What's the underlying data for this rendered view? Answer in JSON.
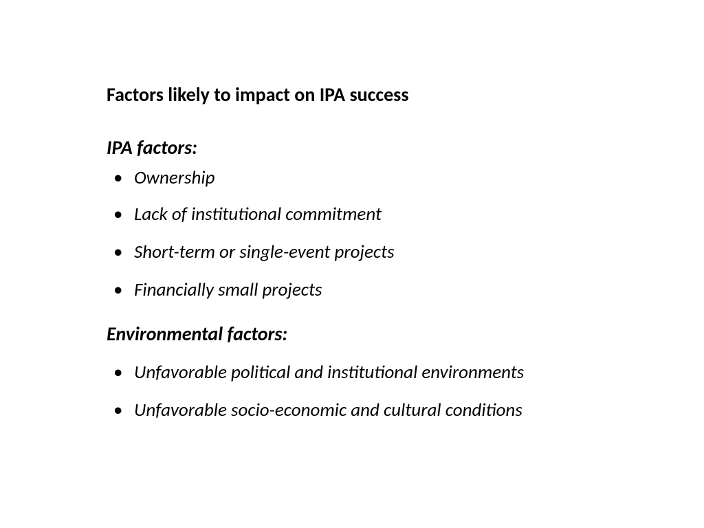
{
  "title": "Factors likely to impact  on IPA success",
  "sections": [
    {
      "header": "IPA factors:",
      "items": [
        "Ownership",
        "Lack of institutional commitment",
        "Short-term or single-event projects",
        "Financially small projects"
      ]
    },
    {
      "header": "Environmental factors:",
      "items": [
        "Unfavorable political and institutional environments",
        "Unfavorable socio-economic and cultural conditions"
      ]
    }
  ],
  "styling": {
    "background_color": "#ffffff",
    "text_color": "#000000",
    "font_family": "Calibri",
    "title_fontsize": 28,
    "title_weight": "bold",
    "header_fontsize": 28,
    "header_weight": "bold",
    "header_style": "italic",
    "item_fontsize": 27,
    "item_style": "italic",
    "bullet_char": "•"
  }
}
